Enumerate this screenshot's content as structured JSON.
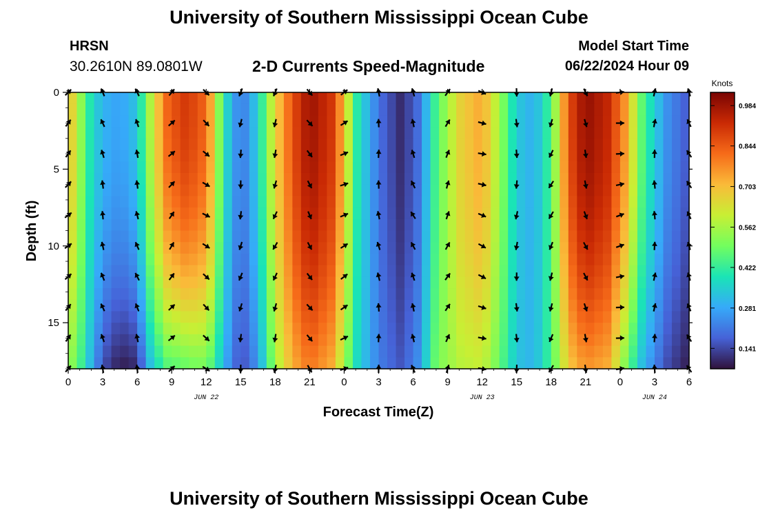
{
  "header": {
    "title": "University of Southern Mississippi Ocean Cube",
    "station_id": "HRSN",
    "station_coords": "30.2610N  89.0801W",
    "subtitle": "2-D Currents Speed-Magnitude",
    "model_start_label": "Model Start Time",
    "model_start_value": "06/22/2024 Hour 09"
  },
  "footer": {
    "title": "University of Southern Mississippi Ocean Cube"
  },
  "chart_data": {
    "type": "heatmap",
    "title": "2-D Currents Speed-Magnitude",
    "xlabel": "Forecast Time(Z)",
    "ylabel": "Depth (ft)",
    "x_range_hours": [
      0,
      54
    ],
    "x_ticks": [
      {
        "hour": 0,
        "label": "0"
      },
      {
        "hour": 3,
        "label": "3"
      },
      {
        "hour": 6,
        "label": "6"
      },
      {
        "hour": 9,
        "label": "9"
      },
      {
        "hour": 12,
        "label": "12"
      },
      {
        "hour": 15,
        "label": "15"
      },
      {
        "hour": 18,
        "label": "18"
      },
      {
        "hour": 21,
        "label": "21"
      },
      {
        "hour": 24,
        "label": "0"
      },
      {
        "hour": 27,
        "label": "3"
      },
      {
        "hour": 30,
        "label": "6"
      },
      {
        "hour": 33,
        "label": "9"
      },
      {
        "hour": 36,
        "label": "12"
      },
      {
        "hour": 39,
        "label": "15"
      },
      {
        "hour": 42,
        "label": "18"
      },
      {
        "hour": 45,
        "label": "21"
      },
      {
        "hour": 48,
        "label": "0"
      },
      {
        "hour": 51,
        "label": "3"
      },
      {
        "hour": 54,
        "label": "6"
      }
    ],
    "date_labels": [
      {
        "hour": 12,
        "label": "JUN 22"
      },
      {
        "hour": 36,
        "label": "JUN 23"
      },
      {
        "hour": 51,
        "label": "JUN 24"
      }
    ],
    "y_range_ft": [
      0,
      18
    ],
    "y_ticks": [
      0,
      5,
      10,
      15
    ],
    "colorbar": {
      "unit": "Knots",
      "range": [
        0.07,
        1.03
      ],
      "ticks": [
        "0.984",
        "0.844",
        "0.703",
        "0.562",
        "0.422",
        "0.281",
        "0.141"
      ],
      "tick_values": [
        0.984,
        0.844,
        0.703,
        0.562,
        0.422,
        0.281,
        0.141
      ],
      "colors": [
        "#30123b",
        "#4662d7",
        "#36aaf9",
        "#1ae4b6",
        "#72fe5e",
        "#c8ef34",
        "#faba39",
        "#f66b19",
        "#ca2a04",
        "#7a0403"
      ]
    },
    "arrow_times_hours": [
      0,
      3,
      6,
      9,
      12,
      15,
      18,
      21,
      24,
      27,
      30,
      33,
      36,
      39,
      42,
      45,
      48,
      51,
      54
    ],
    "arrow_depths_ft": [
      0,
      2,
      4,
      6,
      8,
      10,
      12,
      14,
      16,
      18
    ],
    "surface_speed_profile": [
      {
        "hour": 0,
        "speed": 0.72
      },
      {
        "hour": 1,
        "speed": 0.55
      },
      {
        "hour": 2,
        "speed": 0.38
      },
      {
        "hour": 3,
        "speed": 0.3
      },
      {
        "hour": 4.5,
        "speed": 0.27
      },
      {
        "hour": 6,
        "speed": 0.33
      },
      {
        "hour": 7,
        "speed": 0.55
      },
      {
        "hour": 8.5,
        "speed": 0.82
      },
      {
        "hour": 10,
        "speed": 0.9
      },
      {
        "hour": 11.5,
        "speed": 0.86
      },
      {
        "hour": 12.5,
        "speed": 0.72
      },
      {
        "hour": 13.5,
        "speed": 0.4
      },
      {
        "hour": 15,
        "speed": 0.2
      },
      {
        "hour": 16.5,
        "speed": 0.35
      },
      {
        "hour": 18,
        "speed": 0.66
      },
      {
        "hour": 19.5,
        "speed": 0.86
      },
      {
        "hour": 21,
        "speed": 0.99
      },
      {
        "hour": 23,
        "speed": 0.9
      },
      {
        "hour": 24,
        "speed": 0.7
      },
      {
        "hour": 25,
        "speed": 0.42
      },
      {
        "hour": 27,
        "speed": 0.2
      },
      {
        "hour": 29,
        "speed": 0.1
      },
      {
        "hour": 30.5,
        "speed": 0.2
      },
      {
        "hour": 32,
        "speed": 0.45
      },
      {
        "hour": 34,
        "speed": 0.66
      },
      {
        "hour": 36,
        "speed": 0.74
      },
      {
        "hour": 37.5,
        "speed": 0.55
      },
      {
        "hour": 39,
        "speed": 0.34
      },
      {
        "hour": 40.5,
        "speed": 0.29
      },
      {
        "hour": 42,
        "speed": 0.45
      },
      {
        "hour": 43.5,
        "speed": 0.86
      },
      {
        "hour": 45,
        "speed": 1.0
      },
      {
        "hour": 47,
        "speed": 0.93
      },
      {
        "hour": 48.5,
        "speed": 0.75
      },
      {
        "hour": 50,
        "speed": 0.45
      },
      {
        "hour": 52,
        "speed": 0.25
      },
      {
        "hour": 54,
        "speed": 0.16
      }
    ],
    "bottom_speed_profile": [
      {
        "hour": 0,
        "speed": 0.55
      },
      {
        "hour": 1,
        "speed": 0.45
      },
      {
        "hour": 2,
        "speed": 0.3
      },
      {
        "hour": 3,
        "speed": 0.15
      },
      {
        "hour": 4.5,
        "speed": 0.08
      },
      {
        "hour": 6,
        "speed": 0.1
      },
      {
        "hour": 7,
        "speed": 0.3
      },
      {
        "hour": 8.5,
        "speed": 0.45
      },
      {
        "hour": 10,
        "speed": 0.47
      },
      {
        "hour": 11.5,
        "speed": 0.5
      },
      {
        "hour": 12.5,
        "speed": 0.45
      },
      {
        "hour": 13.5,
        "speed": 0.3
      },
      {
        "hour": 15,
        "speed": 0.14
      },
      {
        "hour": 16.5,
        "speed": 0.25
      },
      {
        "hour": 18,
        "speed": 0.55
      },
      {
        "hour": 19.5,
        "speed": 0.72
      },
      {
        "hour": 21,
        "speed": 0.8
      },
      {
        "hour": 23,
        "speed": 0.72
      },
      {
        "hour": 24,
        "speed": 0.55
      },
      {
        "hour": 25,
        "speed": 0.38
      },
      {
        "hour": 27,
        "speed": 0.22
      },
      {
        "hour": 29,
        "speed": 0.16
      },
      {
        "hour": 30.5,
        "speed": 0.25
      },
      {
        "hour": 32,
        "speed": 0.5
      },
      {
        "hour": 34,
        "speed": 0.58
      },
      {
        "hour": 36,
        "speed": 0.6
      },
      {
        "hour": 37.5,
        "speed": 0.48
      },
      {
        "hour": 39,
        "speed": 0.33
      },
      {
        "hour": 40.5,
        "speed": 0.3
      },
      {
        "hour": 42,
        "speed": 0.45
      },
      {
        "hour": 43.5,
        "speed": 0.68
      },
      {
        "hour": 45,
        "speed": 0.76
      },
      {
        "hour": 47,
        "speed": 0.72
      },
      {
        "hour": 48.5,
        "speed": 0.5
      },
      {
        "hour": 50,
        "speed": 0.3
      },
      {
        "hour": 52,
        "speed": 0.15
      },
      {
        "hour": 54,
        "speed": 0.08
      }
    ]
  }
}
